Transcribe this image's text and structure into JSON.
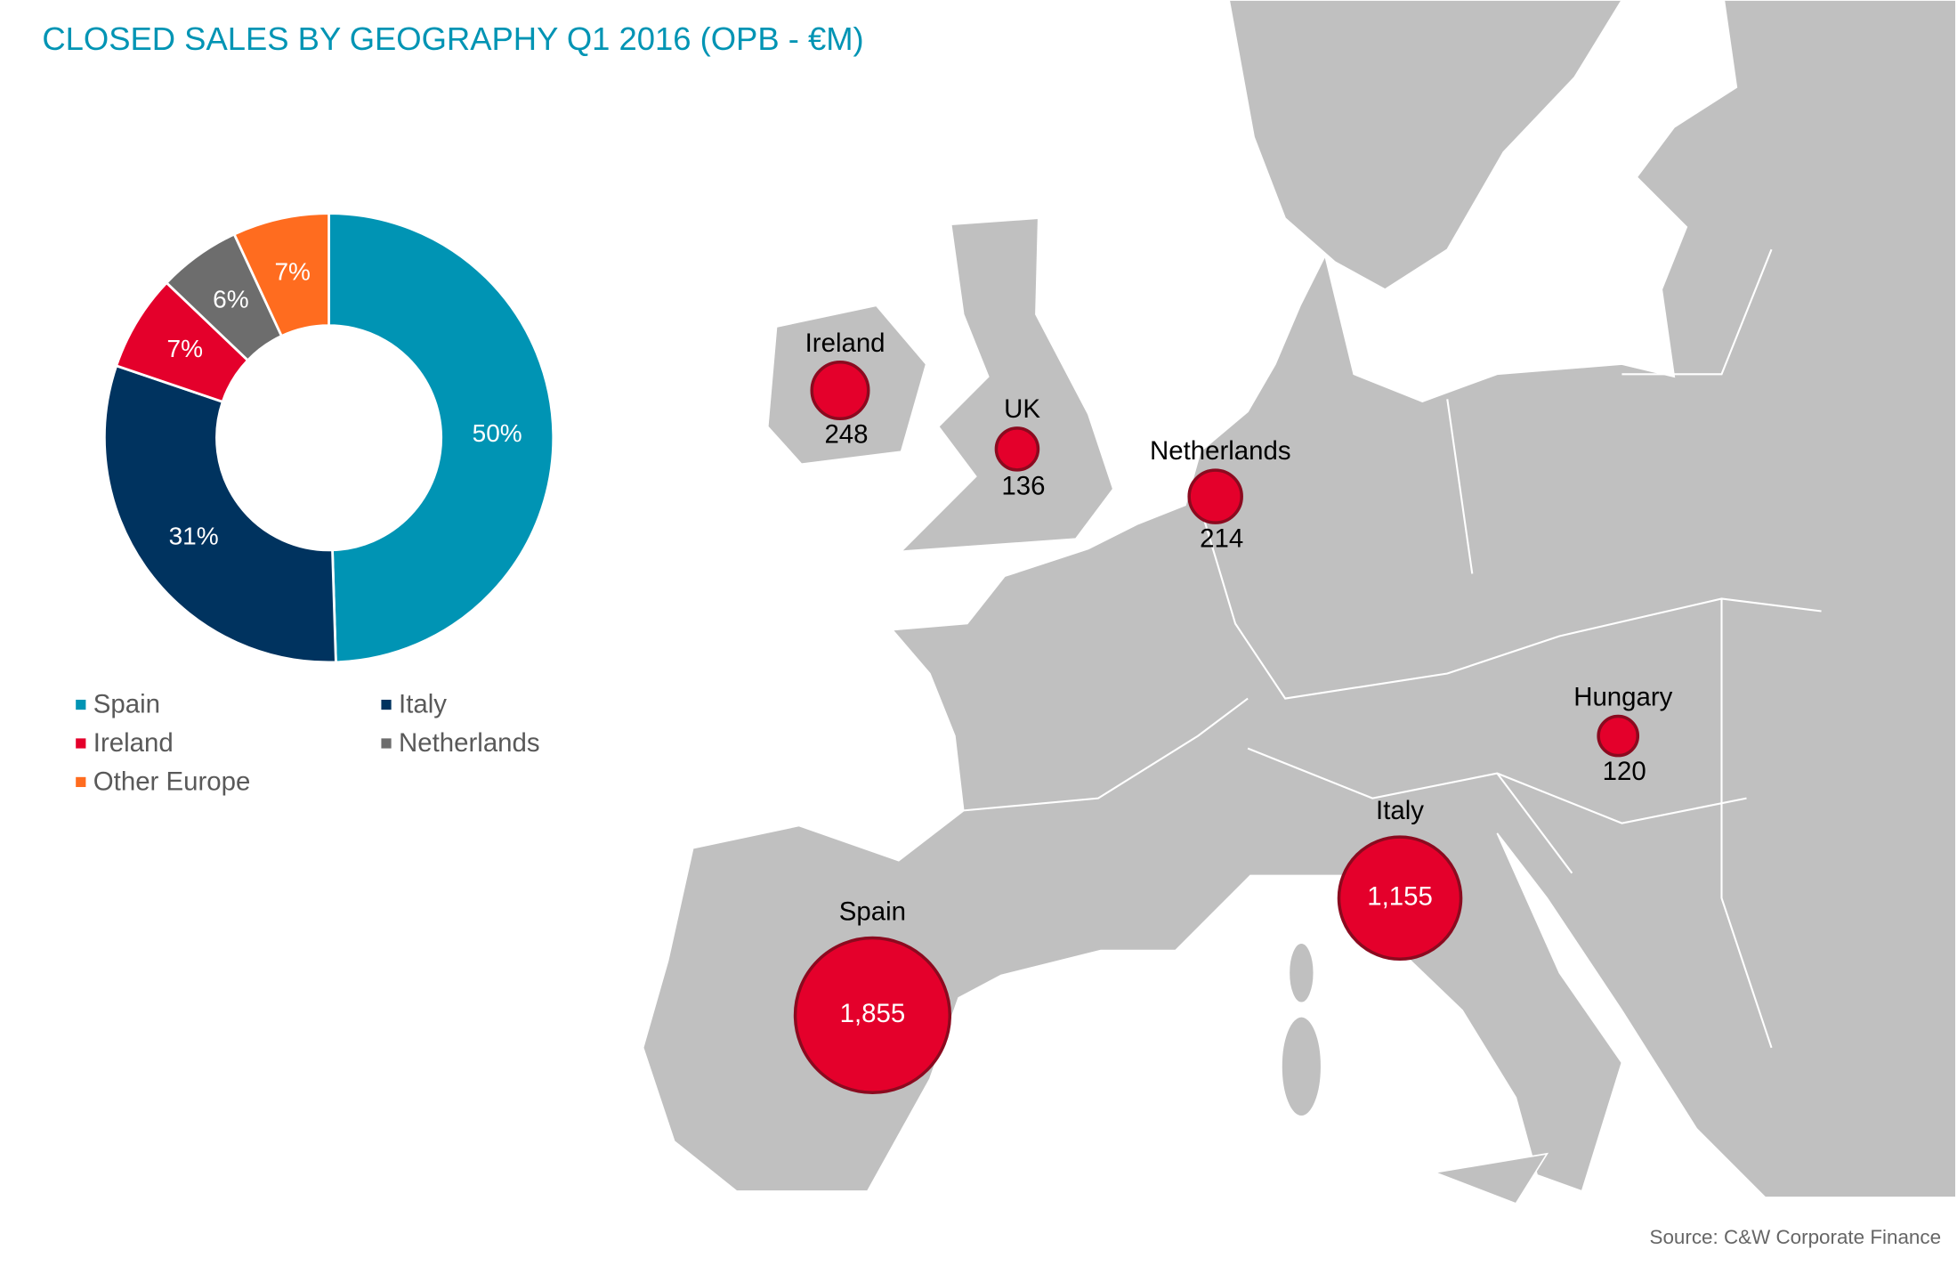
{
  "title": "CLOSED SALES BY GEOGRAPHY Q1 2016 (OPB - €M)",
  "source": "Source: C&W Corporate Finance",
  "chart_data": [
    {
      "type": "donut",
      "categories": [
        "Spain",
        "Italy",
        "Ireland",
        "Netherlands",
        "Other Europe"
      ],
      "values": [
        50,
        31,
        7,
        6,
        7
      ],
      "value_labels": [
        "50%",
        "31%",
        "7%",
        "6%",
        "7%"
      ],
      "colors": [
        "#0094b4",
        "#00335f",
        "#e4002b",
        "#6d6d6d",
        "#ff6c1f"
      ]
    },
    {
      "type": "bubble",
      "categories": [
        "Ireland",
        "UK",
        "Netherlands",
        "Hungary",
        "Italy",
        "Spain"
      ],
      "values": [
        248,
        136,
        214,
        120,
        1155,
        1855
      ],
      "value_labels": [
        "248",
        "136",
        "214",
        "120",
        "1,155",
        "1,855"
      ],
      "color": "#e4002b"
    }
  ]
}
